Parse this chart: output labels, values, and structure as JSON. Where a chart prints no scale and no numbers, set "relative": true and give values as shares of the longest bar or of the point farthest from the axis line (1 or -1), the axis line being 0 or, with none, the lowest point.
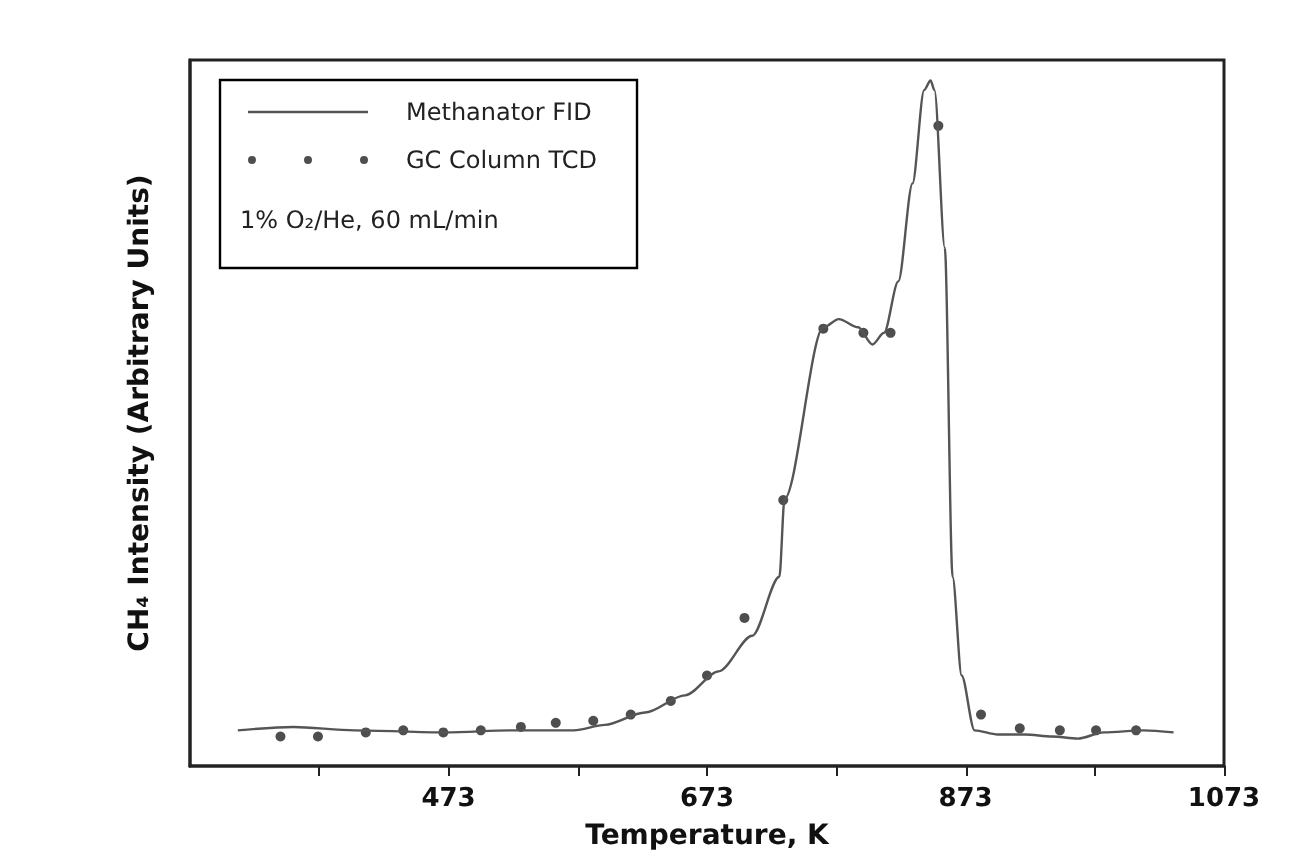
{
  "chart_data": {
    "type": "line",
    "xlabel": "Temperature, K",
    "ylabel": "CH₄ Intensity (Arbitrary Units)",
    "relative": true,
    "xlim": [
      273,
      1073
    ],
    "xticks": [
      {
        "value": 373,
        "label": null
      },
      473,
      {
        "value": 573,
        "label": null
      },
      673,
      {
        "value": 773,
        "label": null
      },
      873,
      {
        "value": 973,
        "label": null
      },
      1073
    ],
    "series": [
      {
        "name": "Methanator FID",
        "type": "line",
        "color": "#555555",
        "marker": "none",
        "x": [
          310,
          353,
          400,
          471,
          523,
          570,
          594,
          625,
          656,
          682,
          708,
          729,
          733,
          763,
          775,
          790,
          801,
          810,
          821,
          832,
          841,
          846,
          849,
          857,
          863,
          870,
          880,
          898,
          919,
          940,
          960,
          980,
          1011,
          1034
        ],
        "values": [
          0.052,
          0.057,
          0.052,
          0.049,
          0.052,
          0.052,
          0.06,
          0.078,
          0.103,
          0.138,
          0.19,
          0.276,
          0.39,
          0.64,
          0.652,
          0.64,
          0.615,
          0.632,
          0.707,
          0.85,
          0.986,
          1.0,
          0.986,
          0.756,
          0.276,
          0.132,
          0.052,
          0.046,
          0.046,
          0.043,
          0.04,
          0.049,
          0.052,
          0.049
        ]
      },
      {
        "name": "GC Column TCD",
        "type": "scatter",
        "color": "#222222",
        "marker": "circle",
        "x": [
          343,
          372,
          409,
          438,
          469,
          498,
          529,
          556,
          585,
          614,
          645,
          673,
          702,
          732,
          763,
          794,
          815,
          852,
          885,
          915,
          946,
          974,
          1005
        ],
        "values": [
          0.043,
          0.043,
          0.049,
          0.052,
          0.049,
          0.052,
          0.057,
          0.063,
          0.066,
          0.075,
          0.095,
          0.132,
          0.216,
          0.388,
          0.638,
          0.632,
          0.632,
          0.934,
          0.075,
          0.055,
          0.052,
          0.052,
          0.052
        ]
      }
    ],
    "annotations": [
      "1% O₂/He, 60 mL/min"
    ],
    "legend": "top left",
    "grid": false
  }
}
